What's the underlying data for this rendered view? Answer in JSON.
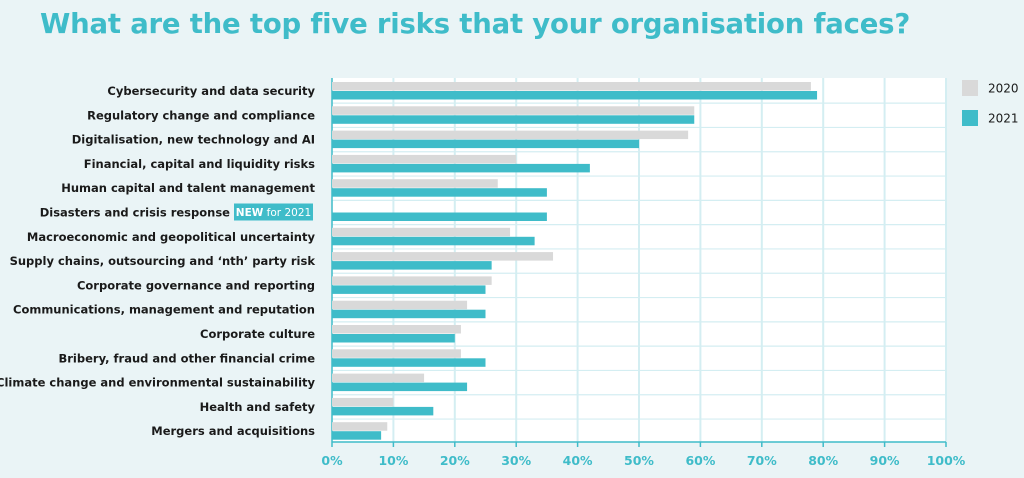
{
  "title": "What are the top five risks that your organisation faces?",
  "colors": {
    "background": "#eaf4f6",
    "plot_background": "#ffffff",
    "accent": "#3fbcc9",
    "series_2020": "#d9d9d9",
    "series_2021": "#3fbcc9",
    "gridline": "#d4eef2"
  },
  "chart_data": {
    "type": "bar",
    "orientation": "horizontal",
    "title": "What are the top five risks that your organisation faces?",
    "xlabel": "",
    "ylabel": "",
    "xlim": [
      0,
      100
    ],
    "ticks": [
      "0%",
      "10%",
      "20%",
      "30%",
      "40%",
      "50%",
      "60%",
      "70%",
      "80%",
      "90%",
      "100%"
    ],
    "grid": true,
    "legend_position": "top-right",
    "categories": [
      "Cybersecurity and data security",
      "Regulatory change and compliance",
      "Digitalisation, new technology and AI",
      "Financial, capital and liquidity risks",
      "Human capital and talent management",
      "Disasters and crisis response",
      "Macroeconomic and geopolitical uncertainty",
      "Supply chains, outsourcing and ‘nth’ party risk",
      "Corporate governance and reporting",
      "Communications, management and reputation",
      "Corporate culture",
      "Bribery, fraud and other financial crime",
      "Climate change and environmental sustainability",
      "Health and safety",
      "Mergers and acquisitions"
    ],
    "series": [
      {
        "name": "2020",
        "values": [
          78,
          59,
          58,
          30,
          27,
          null,
          29,
          36,
          26,
          22,
          21,
          21,
          15,
          10,
          9
        ]
      },
      {
        "name": "2021",
        "values": [
          79,
          59,
          50,
          42,
          35,
          35,
          33,
          26,
          25,
          25,
          20,
          25,
          22,
          16.5,
          8
        ]
      }
    ],
    "annotations": [
      {
        "category": "Disasters and crisis response",
        "badge_bold": "NEW",
        "badge_rest": " for 2021"
      }
    ]
  }
}
